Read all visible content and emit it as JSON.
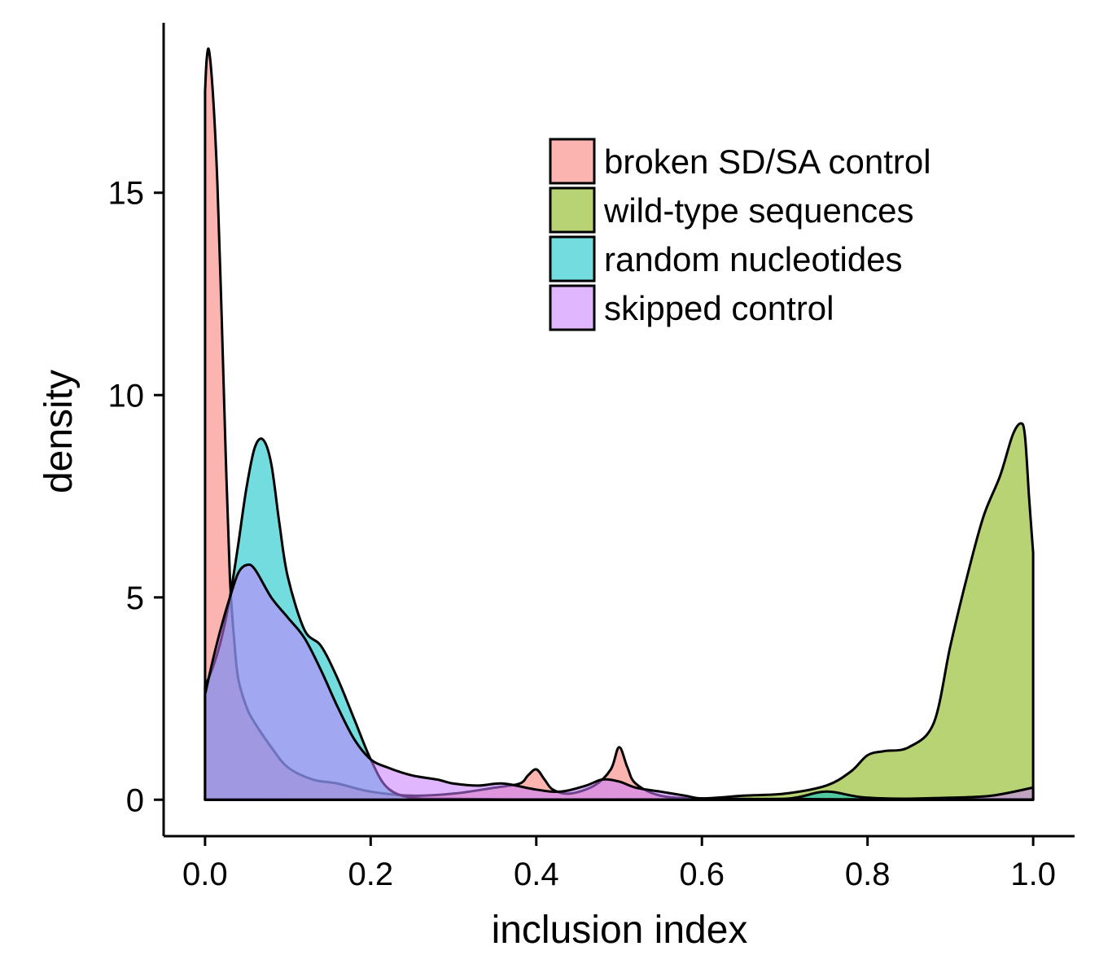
{
  "chart_data": {
    "type": "area",
    "title": "",
    "xlabel": "inclusion index",
    "ylabel": "density",
    "xlim": [
      -0.05,
      1.05
    ],
    "ylim": [
      -0.9,
      19.2
    ],
    "xticks": [
      "0.0",
      "0.2",
      "0.4",
      "0.6",
      "0.8",
      "1.0"
    ],
    "xtick_values": [
      0,
      0.2,
      0.4,
      0.6,
      0.8,
      1.0
    ],
    "yticks": [
      "0",
      "5",
      "10",
      "15"
    ],
    "ytick_values": [
      0,
      5,
      10,
      15
    ],
    "grid": false,
    "legend_position": "top-right",
    "series": [
      {
        "name": "broken SD/SA control",
        "color": "#F8766D",
        "x": [
          0,
          0.002,
          0.005,
          0.01,
          0.015,
          0.02,
          0.025,
          0.03,
          0.035,
          0.04,
          0.05,
          0.06,
          0.08,
          0.1,
          0.13,
          0.16,
          0.2,
          0.25,
          0.3,
          0.35,
          0.38,
          0.39,
          0.4,
          0.41,
          0.42,
          0.44,
          0.47,
          0.49,
          0.5,
          0.51,
          0.52,
          0.55,
          0.6,
          0.7,
          0.8,
          0.9,
          1.0
        ],
        "y": [
          17.5,
          18.3,
          18.5,
          17.3,
          15.2,
          12.0,
          8.5,
          5.5,
          4.0,
          3.0,
          2.3,
          1.9,
          1.3,
          0.8,
          0.5,
          0.4,
          0.2,
          0.1,
          0.15,
          0.3,
          0.4,
          0.6,
          0.75,
          0.5,
          0.25,
          0.15,
          0.35,
          0.75,
          1.3,
          0.8,
          0.4,
          0.1,
          0.03,
          0.01,
          0.01,
          0.01,
          0.01
        ]
      },
      {
        "name": "wild-type sequences",
        "color": "#7CAE00",
        "x": [
          0,
          0.5,
          0.6,
          0.65,
          0.7,
          0.75,
          0.78,
          0.8,
          0.82,
          0.85,
          0.88,
          0.9,
          0.92,
          0.94,
          0.96,
          0.975,
          0.985,
          0.99,
          0.995,
          1.0
        ],
        "y": [
          0,
          0,
          0.03,
          0.1,
          0.15,
          0.35,
          0.7,
          1.1,
          1.2,
          1.3,
          1.9,
          3.8,
          5.5,
          7.0,
          8.0,
          9.0,
          9.3,
          9.0,
          7.5,
          6.1
        ]
      },
      {
        "name": "random nucleotides",
        "color": "#00BFC4",
        "x": [
          0,
          0.01,
          0.02,
          0.03,
          0.04,
          0.05,
          0.06,
          0.07,
          0.08,
          0.09,
          0.1,
          0.12,
          0.14,
          0.16,
          0.18,
          0.2,
          0.22,
          0.25,
          0.3,
          0.4,
          0.5,
          0.6,
          0.7,
          0.75,
          0.8,
          0.9,
          1.0
        ],
        "y": [
          2.8,
          3.3,
          4.0,
          5.0,
          6.3,
          7.7,
          8.7,
          8.9,
          8.3,
          6.8,
          5.5,
          4.2,
          3.8,
          3.0,
          2.0,
          1.0,
          0.3,
          0.05,
          0.02,
          0.01,
          0.01,
          0.01,
          0.02,
          0.2,
          0.05,
          0.01,
          0.01
        ]
      },
      {
        "name": "skipped control",
        "color": "#C77CFF",
        "x": [
          0,
          0.01,
          0.02,
          0.03,
          0.04,
          0.05,
          0.06,
          0.08,
          0.1,
          0.12,
          0.14,
          0.16,
          0.18,
          0.2,
          0.22,
          0.25,
          0.28,
          0.3,
          0.33,
          0.36,
          0.4,
          0.43,
          0.46,
          0.48,
          0.5,
          0.52,
          0.55,
          0.58,
          0.6,
          0.65,
          0.7,
          0.8,
          0.9,
          0.95,
          1.0
        ],
        "y": [
          2.6,
          3.5,
          4.3,
          5.0,
          5.6,
          5.8,
          5.7,
          5.0,
          4.5,
          4.0,
          3.2,
          2.3,
          1.5,
          1.0,
          0.8,
          0.6,
          0.5,
          0.4,
          0.35,
          0.4,
          0.25,
          0.2,
          0.35,
          0.5,
          0.45,
          0.3,
          0.2,
          0.1,
          0.03,
          0.02,
          0.02,
          0.01,
          0.05,
          0.1,
          0.3
        ]
      }
    ]
  }
}
